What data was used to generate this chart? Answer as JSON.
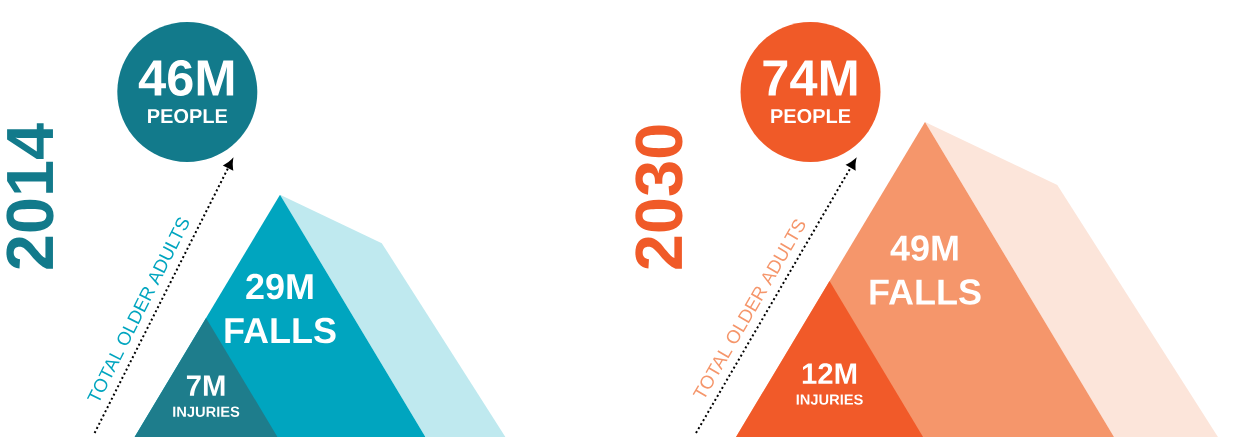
{
  "chart_data": [
    {
      "type": "other",
      "title": "2014",
      "categories": [
        "PEOPLE",
        "FALLS",
        "INJURIES"
      ],
      "values": [
        46,
        29,
        7
      ],
      "value_labels": [
        "46M",
        "29M",
        "7M"
      ],
      "colors": [
        "#127a8b",
        "#00a5bf",
        "#1e7d8c"
      ],
      "annotations": [
        "TOTAL OLDER ADULTS"
      ]
    },
    {
      "type": "other",
      "title": "2030",
      "categories": [
        "PEOPLE",
        "FALLS",
        "INJURIES"
      ],
      "values": [
        74,
        49,
        12
      ],
      "value_labels": [
        "74M",
        "49M",
        "12M"
      ],
      "colors": [
        "#f05a28",
        "#f5966b",
        "#f15a29"
      ],
      "annotations": [
        "TOTAL OLDER ADULTS"
      ]
    }
  ]
}
